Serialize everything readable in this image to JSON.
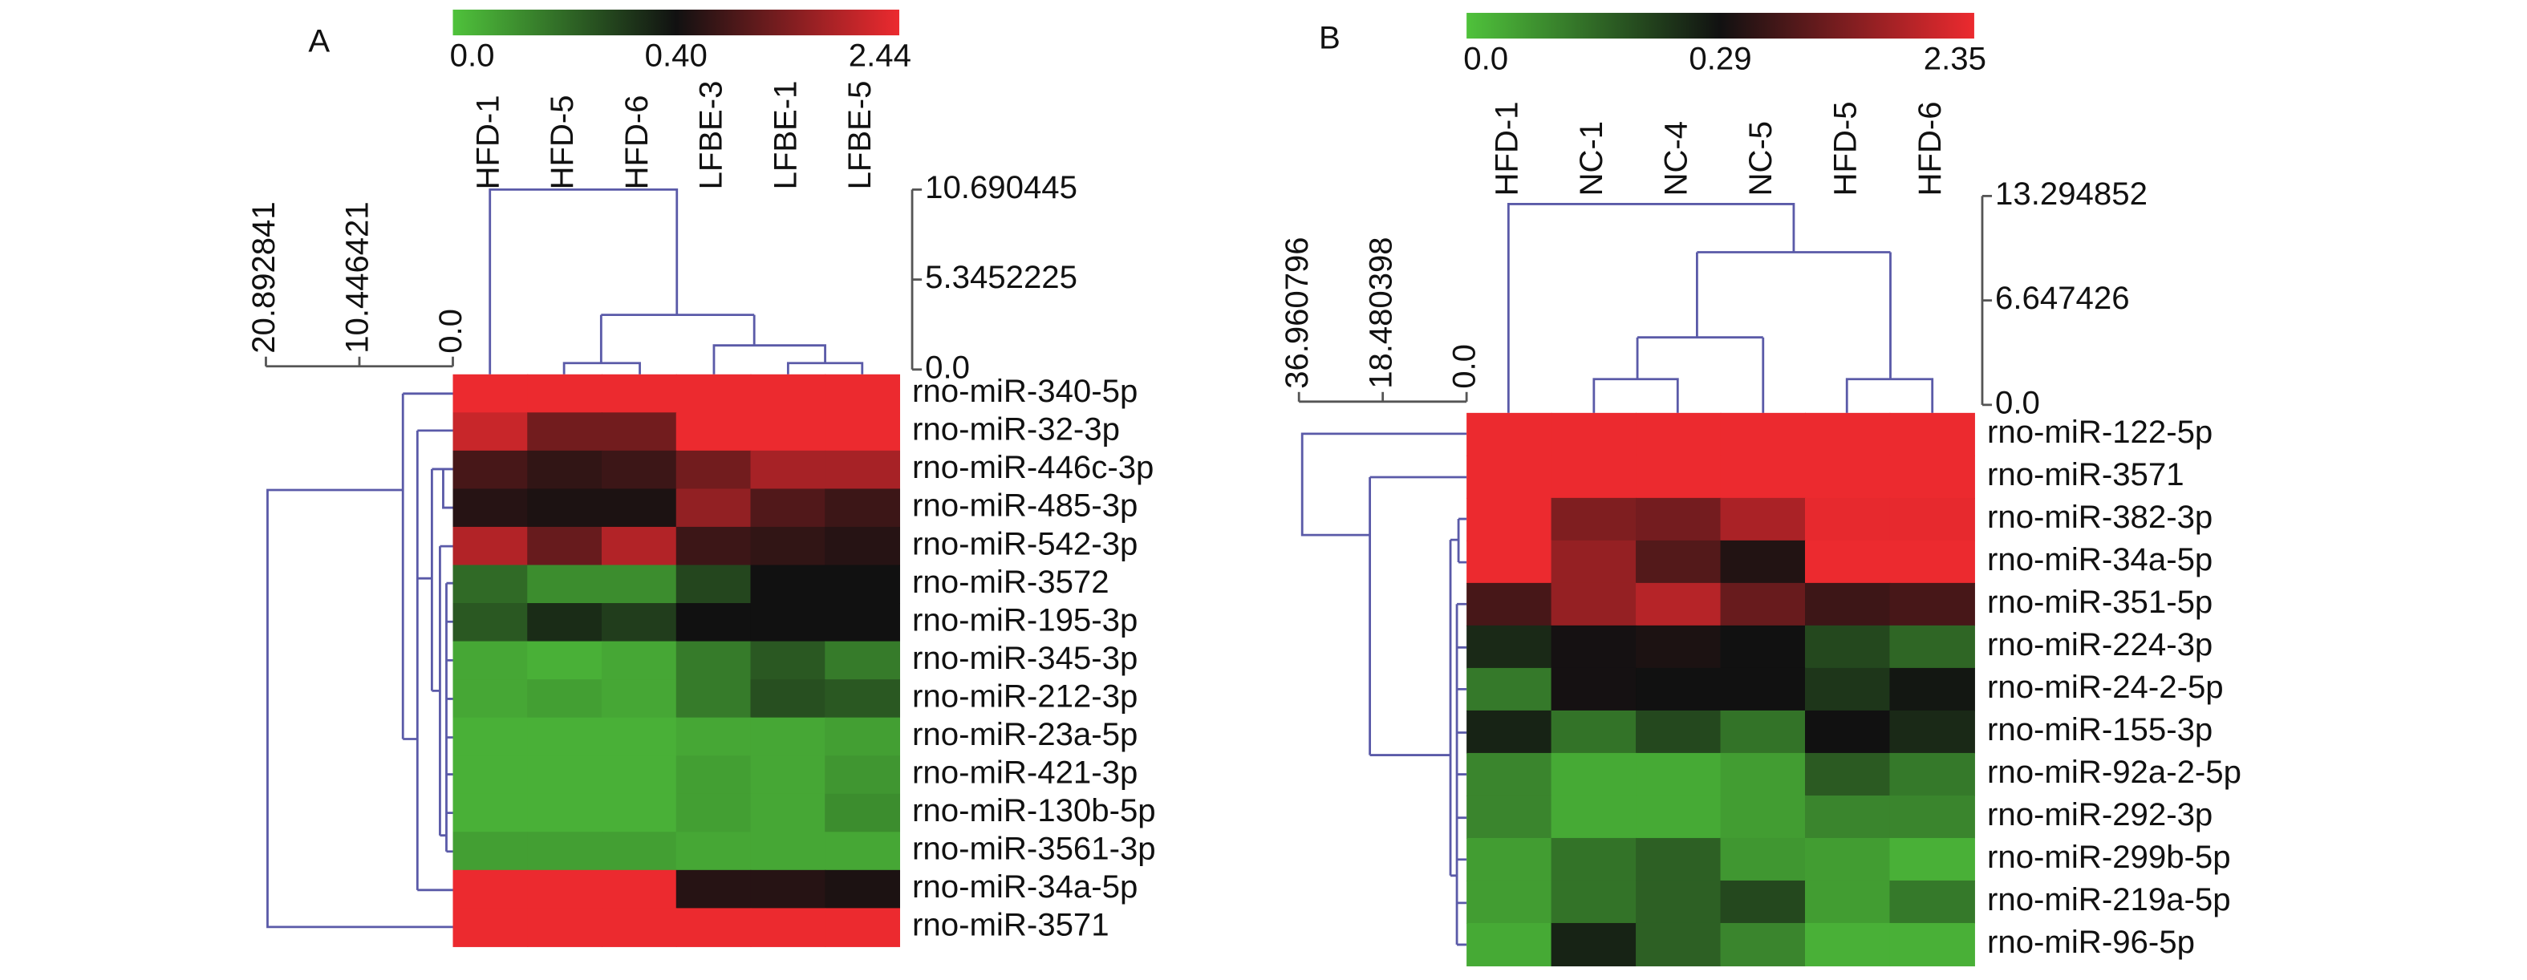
{
  "chart_data": [
    {
      "type": "heatmap",
      "panel_label": "A",
      "x": [
        "HFD-1",
        "HFD-5",
        "HFD-6",
        "LFBE-3",
        "LFBE-1",
        "LFBE-5"
      ],
      "y": [
        "rno-miR-340-5p",
        "rno-miR-32-3p",
        "rno-miR-446c-3p",
        "rno-miR-485-3p",
        "rno-miR-542-3p",
        "rno-miR-3572",
        "rno-miR-195-3p",
        "rno-miR-345-3p",
        "rno-miR-212-3p",
        "rno-miR-23a-5p",
        "rno-miR-421-3p",
        "rno-miR-130b-5p",
        "rno-miR-3561-3p",
        "rno-miR-34a-5p",
        "rno-miR-3571"
      ],
      "values": [
        [
          2.44,
          2.44,
          2.44,
          2.44,
          2.44,
          2.44
        ],
        [
          2.1,
          1.3,
          1.3,
          2.44,
          2.44,
          2.44
        ],
        [
          0.9,
          0.7,
          0.8,
          1.3,
          1.8,
          1.8
        ],
        [
          0.6,
          0.5,
          0.5,
          1.6,
          1.0,
          0.8
        ],
        [
          1.9,
          1.2,
          1.9,
          0.8,
          0.7,
          0.6
        ],
        [
          0.2,
          0.12,
          0.12,
          0.28,
          0.4,
          0.4
        ],
        [
          0.24,
          0.34,
          0.3,
          0.4,
          0.4,
          0.4
        ],
        [
          0.06,
          0.04,
          0.06,
          0.16,
          0.24,
          0.16
        ],
        [
          0.06,
          0.08,
          0.06,
          0.16,
          0.26,
          0.24
        ],
        [
          0.04,
          0.04,
          0.04,
          0.06,
          0.06,
          0.08
        ],
        [
          0.04,
          0.04,
          0.04,
          0.08,
          0.06,
          0.1
        ],
        [
          0.04,
          0.04,
          0.04,
          0.08,
          0.06,
          0.12
        ],
        [
          0.08,
          0.08,
          0.08,
          0.06,
          0.06,
          0.06
        ],
        [
          2.44,
          2.44,
          2.44,
          0.6,
          0.6,
          0.5
        ],
        [
          2.44,
          2.44,
          2.44,
          2.44,
          2.44,
          2.44
        ]
      ],
      "colorbar": {
        "ticks": [
          {
            "value": 0,
            "label": "0.0"
          },
          {
            "value": 0.4,
            "label": "0.40"
          },
          2.44
        ],
        "colors": [
          "#4fc23b",
          "#111111",
          "#ec2a2f"
        ]
      },
      "col_dendrogram_ticks": [
        10.690445,
        5.3452225,
        {
          "value": 0,
          "label": "0.0"
        }
      ],
      "row_dendrogram_ticks": [
        20.892841,
        10.446421,
        {
          "value": 0,
          "label": "0.0"
        }
      ]
    },
    {
      "type": "heatmap",
      "panel_label": "B",
      "x": [
        "HFD-1",
        "NC-1",
        "NC-4",
        "NC-5",
        "HFD-5",
        "HFD-6"
      ],
      "y": [
        "rno-miR-122-5p",
        "rno-miR-3571",
        "rno-miR-382-3p",
        "rno-miR-34a-5p",
        "rno-miR-351-5p",
        "rno-miR-224-3p",
        "rno-miR-24-2-5p",
        "rno-miR-155-3p",
        "rno-miR-92a-2-5p",
        "rno-miR-292-3p",
        "rno-miR-299b-5p",
        "rno-miR-219a-5p",
        "rno-miR-96-5p"
      ],
      "values": [
        [
          2.35,
          2.35,
          2.35,
          2.35,
          2.35,
          2.35
        ],
        [
          2.35,
          2.35,
          2.35,
          2.35,
          2.35,
          2.35
        ],
        [
          2.35,
          1.32,
          1.22,
          1.73,
          2.3,
          2.3
        ],
        [
          2.35,
          1.53,
          0.91,
          0.45,
          2.35,
          2.35
        ],
        [
          0.8,
          1.53,
          1.84,
          1.11,
          0.7,
          0.8
        ],
        [
          0.25,
          0.33,
          0.39,
          0.29,
          0.2,
          0.15
        ],
        [
          0.12,
          0.33,
          0.29,
          0.29,
          0.23,
          0.28
        ],
        [
          0.26,
          0.13,
          0.2,
          0.13,
          0.29,
          0.25
        ],
        [
          0.1,
          0.04,
          0.04,
          0.06,
          0.17,
          0.12
        ],
        [
          0.1,
          0.04,
          0.04,
          0.06,
          0.1,
          0.1
        ],
        [
          0.06,
          0.13,
          0.16,
          0.07,
          0.06,
          0.03
        ],
        [
          0.06,
          0.13,
          0.16,
          0.2,
          0.06,
          0.12
        ],
        [
          0.04,
          0.26,
          0.16,
          0.1,
          0.03,
          0.03
        ]
      ],
      "colorbar": {
        "ticks": [
          {
            "value": 0,
            "label": "0.0"
          },
          0.29,
          2.35
        ],
        "colors": [
          "#4fc23b",
          "#111111",
          "#ec2a2f"
        ]
      },
      "col_dendrogram_ticks": [
        13.294852,
        6.647426,
        {
          "value": 0,
          "label": "0.0"
        }
      ],
      "row_dendrogram_ticks": [
        36.960796,
        18.480398,
        {
          "value": 0,
          "label": "0.0"
        }
      ]
    }
  ]
}
